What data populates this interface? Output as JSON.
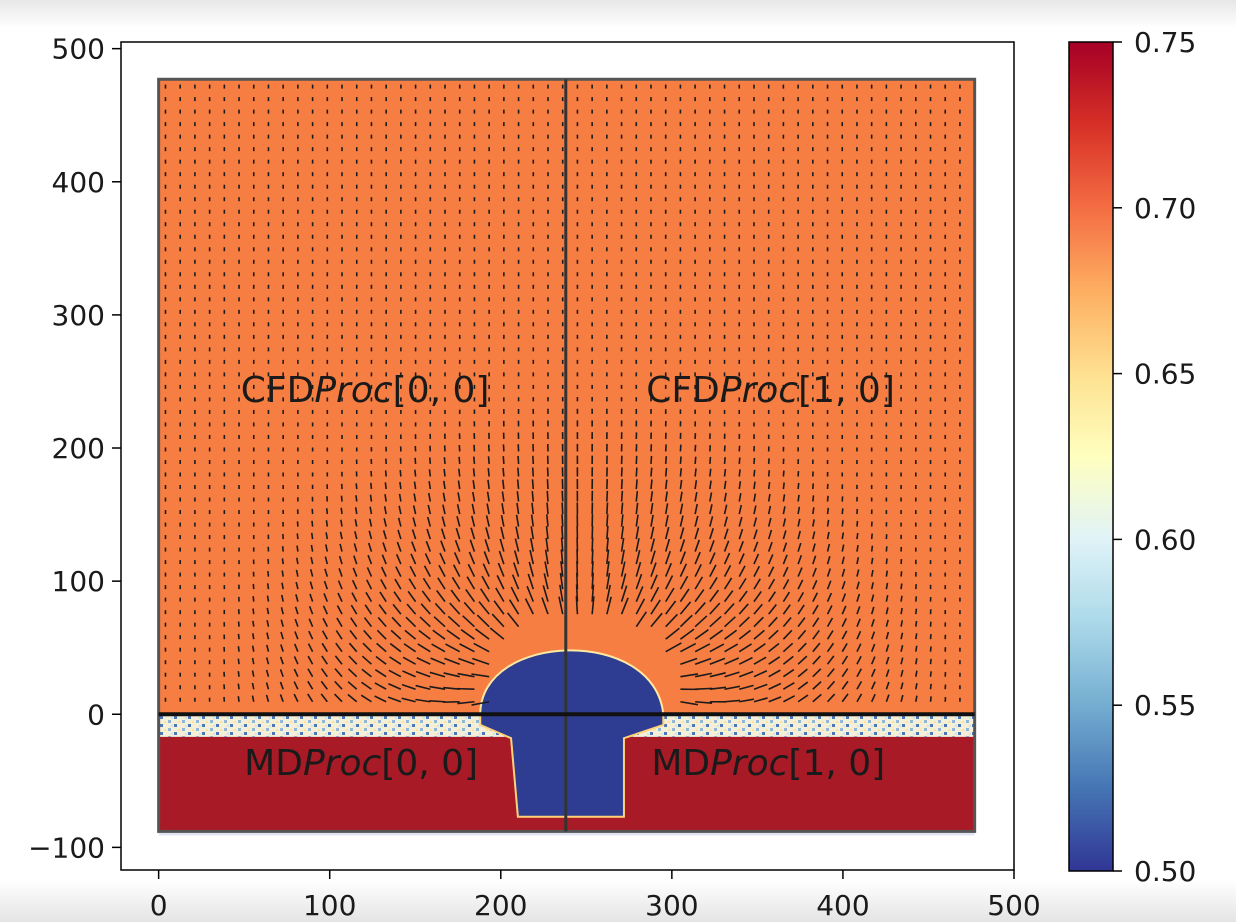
{
  "chart_data": {
    "type": "heatmap",
    "title": "",
    "xlabel": "",
    "ylabel": "",
    "xlim": [
      -22,
      500
    ],
    "ylim": [
      -117,
      505
    ],
    "x_ticks": [
      0,
      100,
      200,
      300,
      400,
      500
    ],
    "y_ticks": [
      -100,
      0,
      100,
      200,
      300,
      400,
      500
    ],
    "x_tick_labels": [
      "0",
      "100",
      "200",
      "300",
      "400",
      "500"
    ],
    "y_tick_labels": [
      "−100",
      "0",
      "100",
      "200",
      "300",
      "400",
      "500"
    ],
    "colorbar": {
      "range": [
        0.5,
        0.75
      ],
      "ticks": [
        0.5,
        0.55,
        0.6,
        0.65,
        0.7,
        0.75
      ],
      "tick_labels": [
        "0.50",
        "0.55",
        "0.60",
        "0.65",
        "0.70",
        "0.75"
      ],
      "colormap": "RdYlBu_r",
      "colors": [
        "#313695",
        "#4575b4",
        "#74add1",
        "#abd9e9",
        "#e0f3f8",
        "#ffffbf",
        "#fee090",
        "#fdae61",
        "#f46d43",
        "#d73027",
        "#a50026"
      ]
    },
    "domain": {
      "x": [
        0,
        477
      ],
      "y": [
        -88,
        477
      ]
    },
    "interface_y": 0,
    "processor_split_x": 238,
    "fields": [
      {
        "region": "CFD",
        "value": 0.71,
        "color": "#f67e43"
      },
      {
        "region": "MD",
        "value": 0.75,
        "color": "#a81a25"
      },
      {
        "region": "droplet",
        "value": 0.5,
        "color": "#2e3d91"
      }
    ],
    "annotations": [
      {
        "text_plain": "CFD",
        "text_italic": "Proc",
        "text_index": "[0, 0]",
        "x": 48,
        "y": 245
      },
      {
        "text_plain": "CFD",
        "text_italic": "Proc",
        "text_index": "[1, 0]",
        "x": 285,
        "y": 245
      },
      {
        "text_plain": "MD",
        "text_italic": "Proc",
        "text_index": "[0, 0]",
        "x": 50,
        "y": -35
      },
      {
        "text_plain": "MD",
        "text_italic": "Proc",
        "text_index": "[1, 0]",
        "x": 288,
        "y": -35
      }
    ],
    "grid": false,
    "legend": "colorbar-right"
  }
}
